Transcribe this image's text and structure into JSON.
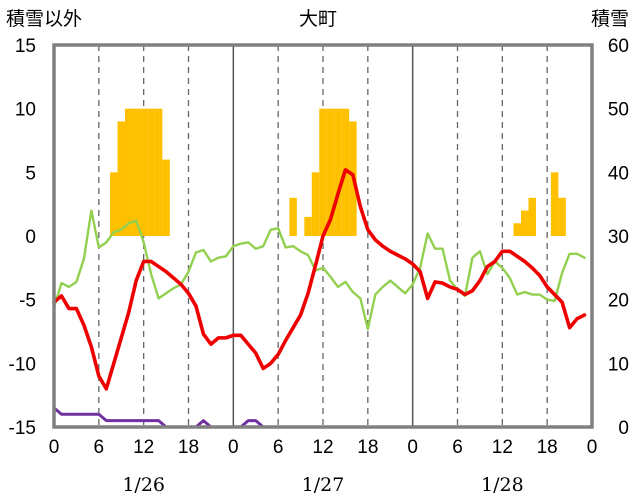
{
  "chart_data": {
    "type": "line",
    "title": "大町",
    "left_axis_label": "積雪以外",
    "right_axis_label": "積雪",
    "ylim_left": [
      -15,
      15
    ],
    "yticks_left": [
      15,
      10,
      5,
      0,
      -5,
      -10,
      -15
    ],
    "ylim_right": [
      0,
      60
    ],
    "yticks_right": [
      60,
      50,
      40,
      30,
      20,
      10,
      0
    ],
    "xlim_hours": [
      0,
      72
    ],
    "x_tick_labels": [
      "0",
      "6",
      "12",
      "18",
      "0",
      "6",
      "12",
      "18",
      "0",
      "6",
      "12",
      "18",
      "0"
    ],
    "date_labels": [
      "1/26",
      "1/27",
      "1/28"
    ],
    "grid": "vertical dashed lines at 6-hour marks, solid at day boundaries",
    "colors": {
      "precip_bars": "#FFC000",
      "temperature": "#EE0000",
      "humidity_like": "#92D050",
      "snow_depth": "#7030A0",
      "frame": "#808080"
    },
    "bar_hours": [
      8,
      9,
      10,
      11,
      12,
      13,
      14,
      15,
      32,
      34,
      35,
      36,
      37,
      38,
      39,
      40,
      62,
      63,
      64,
      67,
      68
    ],
    "bar_values": [
      5,
      9,
      10,
      10,
      10,
      10,
      10,
      6,
      3,
      1.5,
      5,
      10,
      10,
      10,
      10,
      9,
      1,
      2,
      3,
      5,
      3
    ],
    "series": [
      {
        "axis": "left",
        "x": [
          0,
          1,
          2,
          3,
          4,
          5,
          6,
          7,
          8,
          9,
          10,
          11,
          12,
          13,
          14,
          15,
          16,
          17,
          18,
          19,
          20,
          21,
          22,
          23,
          24,
          25,
          26,
          27,
          28,
          29,
          30,
          31,
          32,
          33,
          34,
          35,
          36,
          37,
          38,
          39,
          40,
          41,
          42,
          43,
          44,
          45,
          46,
          47,
          48,
          49,
          50,
          51,
          52,
          53,
          54,
          55,
          56,
          57,
          58,
          59,
          60,
          61,
          62,
          63,
          64,
          65,
          66,
          67,
          68,
          69,
          70,
          71
        ],
        "values": [
          -5.2,
          -4.7,
          -5.7,
          -5.7,
          -7,
          -8.7,
          -11,
          -12,
          -10,
          -8,
          -6,
          -3.5,
          -2,
          -2,
          -2.4,
          -2.8,
          -3.3,
          -3.8,
          -4.5,
          -5.5,
          -7.7,
          -8.5,
          -8,
          -8,
          -7.8,
          -7.8,
          -8.5,
          -9.2,
          -10.4,
          -10,
          -9.3,
          -8.2,
          -7.2,
          -6.2,
          -4.5,
          -2.3,
          0,
          1.3,
          3.3,
          5.2,
          4.8,
          2.3,
          0.5,
          -0.3,
          -0.8,
          -1.2,
          -1.5,
          -1.8,
          -2.2,
          -2.8,
          -4.9,
          -3.6,
          -3.7,
          -4,
          -4.2,
          -4.6,
          -4.3,
          -3.5,
          -2.4,
          -2,
          -1.2,
          -1.2,
          -1.6,
          -2,
          -2.5,
          -3.1,
          -4,
          -4.6,
          -5.2,
          -7.2,
          -6.5,
          -6.2
        ]
      },
      {
        "axis": "left",
        "x": [
          0,
          1,
          2,
          3,
          4,
          5,
          6,
          7,
          8,
          9,
          10,
          11,
          12,
          13,
          14,
          15,
          16,
          17,
          18,
          19,
          20,
          21,
          22,
          23,
          24,
          25,
          26,
          27,
          28,
          29,
          30,
          31,
          32,
          33,
          34,
          35,
          36,
          37,
          38,
          39,
          40,
          41,
          42,
          43,
          44,
          45,
          46,
          47,
          48,
          49,
          50,
          51,
          52,
          53,
          54,
          55,
          56,
          57,
          58,
          59,
          60,
          61,
          62,
          63,
          64,
          65,
          66,
          67,
          68,
          69,
          70,
          71
        ],
        "values": [
          -5.6,
          -3.7,
          -4,
          -3.6,
          -1.8,
          2,
          -0.9,
          -0.5,
          0.3,
          0.5,
          1,
          1.2,
          -0.5,
          -3,
          -4.9,
          -4.5,
          -4.1,
          -3.8,
          -2.8,
          -1.3,
          -1.1,
          -2,
          -1.7,
          -1.6,
          -0.8,
          -0.6,
          -0.5,
          -1,
          -0.8,
          0.5,
          0.6,
          -0.9,
          -0.8,
          -1.2,
          -1.5,
          -2.7,
          -2.5,
          -3.2,
          -4,
          -3.6,
          -4.4,
          -4.9,
          -7.3,
          -4.6,
          -4,
          -3.5,
          -4,
          -4.5,
          -3.8,
          -2.5,
          0.2,
          -1,
          -1,
          -3.5,
          -4.2,
          -4.7,
          -1.7,
          -1.2,
          -3,
          -2,
          -2.5,
          -3.3,
          -4.6,
          -4.4,
          -4.6,
          -4.6,
          -5,
          -5.1,
          -2.9,
          -1.4,
          -1.4,
          -1.7
        ]
      },
      {
        "axis": "right",
        "x": [
          0,
          1,
          2,
          3,
          4,
          5,
          6,
          7,
          8,
          9,
          10,
          11,
          12,
          13,
          14,
          15,
          16,
          17,
          18,
          19,
          20,
          21,
          22,
          23,
          24,
          25,
          26,
          27,
          28,
          29,
          30,
          31,
          32,
          33,
          34,
          35,
          36,
          37,
          38,
          39,
          40,
          41,
          42,
          43,
          44,
          45,
          46,
          47,
          48,
          49,
          50,
          51,
          52,
          53,
          54,
          55,
          56,
          57,
          58,
          59,
          60,
          61,
          62,
          63,
          64,
          65,
          66,
          67,
          68,
          69,
          70,
          71
        ],
        "values": [
          3,
          2,
          2,
          2,
          2,
          2,
          2,
          1,
          1,
          1,
          1,
          1,
          1,
          1,
          1,
          0,
          0,
          0,
          0,
          0,
          1,
          0,
          0,
          0,
          0,
          0,
          1,
          1,
          0,
          0,
          0,
          0,
          0,
          0,
          0,
          0,
          0,
          0,
          0,
          0,
          0,
          0,
          0,
          0,
          0,
          0,
          0,
          0,
          0,
          0,
          0,
          0,
          0,
          0,
          0,
          0,
          0,
          0,
          0,
          0,
          0,
          0,
          0,
          0,
          0,
          0,
          0,
          0,
          0,
          0,
          0,
          0
        ]
      }
    ]
  }
}
